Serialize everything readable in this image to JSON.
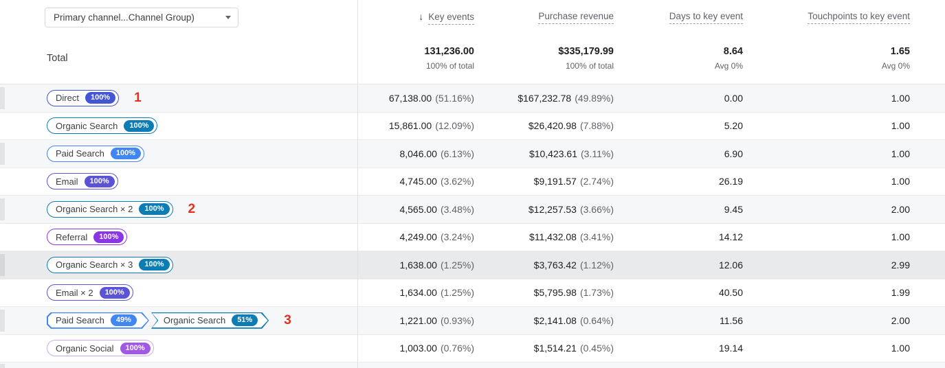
{
  "controls": {
    "dimension_dropdown_label": "Primary channel...Channel Group)"
  },
  "header": {
    "columns": [
      {
        "label": "Key events",
        "sorted": "descending"
      },
      {
        "label": "Purchase revenue"
      },
      {
        "label": "Days to key event"
      },
      {
        "label": "Touchpoints to key event"
      }
    ]
  },
  "total": {
    "label": "Total",
    "cells": [
      {
        "value": "131,236.00",
        "sub": "100% of total"
      },
      {
        "value": "$335,179.99",
        "sub": "100% of total"
      },
      {
        "value": "8.64",
        "sub": "Avg 0%"
      },
      {
        "value": "1.65",
        "sub": "Avg 0%"
      }
    ]
  },
  "colors": {
    "annotation": "#e0301e",
    "direct": "#4355d4",
    "organic_search": "#0d7cb5",
    "paid_search": "#4285f4",
    "email": "#5a53d6",
    "referral": "#8a36e4",
    "organic_social": "#a158e4"
  },
  "rows": [
    {
      "shade": "gray",
      "annotation": "1",
      "badges": [
        {
          "label": "Direct",
          "percent": "100%",
          "color": "#4355d4",
          "shape": "pill"
        }
      ],
      "cells": [
        {
          "value": "67,138.00",
          "pct": "(51.16%)"
        },
        {
          "value": "$167,232.78",
          "pct": "(49.89%)"
        },
        {
          "value": "0.00"
        },
        {
          "value": "1.00"
        }
      ]
    },
    {
      "shade": "white",
      "badges": [
        {
          "label": "Organic Search",
          "percent": "100%",
          "color": "#0d7cb5",
          "shape": "pill"
        }
      ],
      "cells": [
        {
          "value": "15,861.00",
          "pct": "(12.09%)"
        },
        {
          "value": "$26,420.98",
          "pct": "(7.88%)"
        },
        {
          "value": "5.20"
        },
        {
          "value": "1.00"
        }
      ]
    },
    {
      "shade": "gray",
      "badges": [
        {
          "label": "Paid Search",
          "percent": "100%",
          "color": "#4285f4",
          "shape": "pill"
        }
      ],
      "cells": [
        {
          "value": "8,046.00",
          "pct": "(6.13%)"
        },
        {
          "value": "$10,423.61",
          "pct": "(3.11%)"
        },
        {
          "value": "6.90"
        },
        {
          "value": "1.00"
        }
      ]
    },
    {
      "shade": "white",
      "badges": [
        {
          "label": "Email",
          "percent": "100%",
          "color": "#5a53d6",
          "shape": "pill"
        }
      ],
      "cells": [
        {
          "value": "4,745.00",
          "pct": "(3.62%)"
        },
        {
          "value": "$9,191.57",
          "pct": "(2.74%)"
        },
        {
          "value": "26.19"
        },
        {
          "value": "1.00"
        }
      ]
    },
    {
      "shade": "gray",
      "annotation": "2",
      "badges": [
        {
          "label": "Organic Search × 2",
          "percent": "100%",
          "color": "#0d7cb5",
          "shape": "pill"
        }
      ],
      "cells": [
        {
          "value": "4,565.00",
          "pct": "(3.48%)"
        },
        {
          "value": "$12,257.53",
          "pct": "(3.66%)"
        },
        {
          "value": "9.45"
        },
        {
          "value": "2.00"
        }
      ]
    },
    {
      "shade": "white",
      "badges": [
        {
          "label": "Referral",
          "percent": "100%",
          "color": "#8a36e4",
          "shape": "pill"
        }
      ],
      "cells": [
        {
          "value": "4,249.00",
          "pct": "(3.24%)"
        },
        {
          "value": "$11,432.08",
          "pct": "(3.41%)"
        },
        {
          "value": "14.12"
        },
        {
          "value": "1.00"
        }
      ]
    },
    {
      "shade": "highlight",
      "badges": [
        {
          "label": "Organic Search × 3",
          "percent": "100%",
          "color": "#0d7cb5",
          "shape": "pill"
        }
      ],
      "cells": [
        {
          "value": "1,638.00",
          "pct": "(1.25%)"
        },
        {
          "value": "$3,763.42",
          "pct": "(1.12%)"
        },
        {
          "value": "12.06"
        },
        {
          "value": "2.99"
        }
      ]
    },
    {
      "shade": "white",
      "badges": [
        {
          "label": "Email × 2",
          "percent": "100%",
          "color": "#5a53d6",
          "shape": "pill"
        }
      ],
      "cells": [
        {
          "value": "1,634.00",
          "pct": "(1.25%)"
        },
        {
          "value": "$5,795.98",
          "pct": "(1.73%)"
        },
        {
          "value": "40.50"
        },
        {
          "value": "1.99"
        }
      ]
    },
    {
      "shade": "gray",
      "annotation": "3",
      "badges": [
        {
          "label": "Paid Search",
          "percent": "49%",
          "color": "#4285f4",
          "shape": "chev-first"
        },
        {
          "label": "Organic Search",
          "percent": "51%",
          "color": "#0d7cb5",
          "shape": "chev-last"
        }
      ],
      "cells": [
        {
          "value": "1,221.00",
          "pct": "(0.93%)"
        },
        {
          "value": "$2,141.08",
          "pct": "(0.64%)"
        },
        {
          "value": "11.56"
        },
        {
          "value": "2.00"
        }
      ]
    },
    {
      "shade": "white",
      "badges": [
        {
          "label": "Organic Social",
          "percent": "100%",
          "color": "#a158e4",
          "border": "#cfa8f0",
          "shape": "pill"
        }
      ],
      "cells": [
        {
          "value": "1,003.00",
          "pct": "(0.76%)"
        },
        {
          "value": "$1,514.21",
          "pct": "(0.45%)"
        },
        {
          "value": "19.14"
        },
        {
          "value": "1.00"
        }
      ]
    }
  ]
}
